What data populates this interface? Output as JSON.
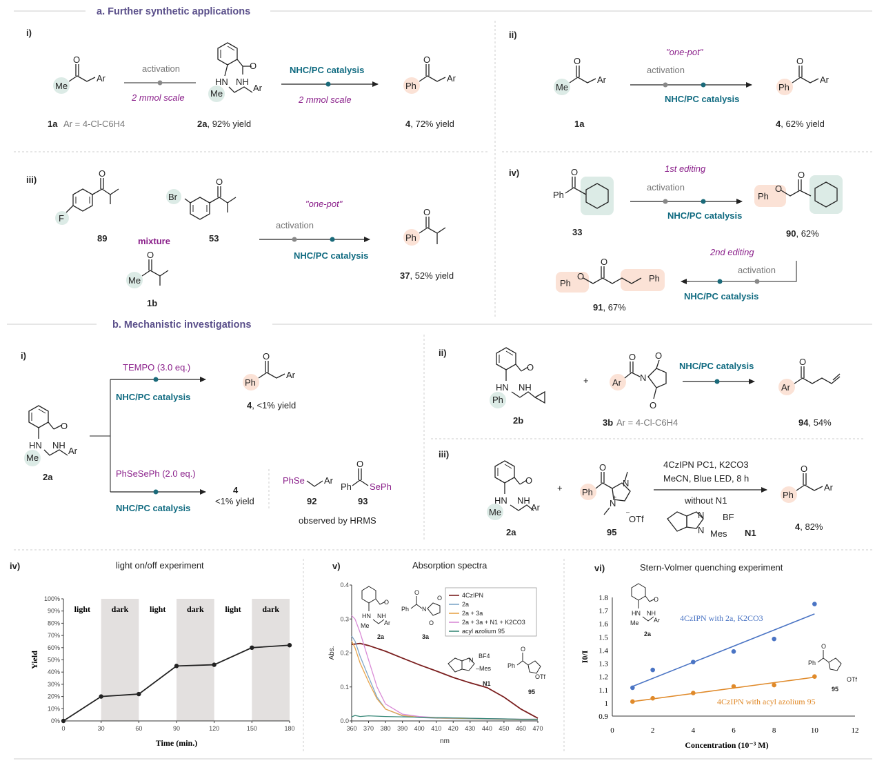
{
  "headings": {
    "a": "a. Further synthetic applications",
    "b": "b. Mechanistic investigations"
  },
  "panel_a": {
    "i": {
      "numeral": "i)",
      "cond1_top": "activation",
      "cond1_bottom": "2 mmol scale",
      "cond2_top": "NHC/PC catalysis",
      "cond2_bottom": "2 mmol scale",
      "sm_id": "1a",
      "sm_note": "Ar = 4-Cl-C6H4",
      "int_id": "2a",
      "int_yield": ", 92% yield",
      "prod_id": "4",
      "prod_yield": ", 72% yield"
    },
    "ii": {
      "numeral": "ii)",
      "onepot": "\"one-pot\"",
      "cond_top": "activation",
      "cond_bottom": "NHC/PC catalysis",
      "sm_id": "1a",
      "prod_id": "4",
      "prod_yield": ", 62% yield"
    },
    "iii": {
      "numeral": "iii)",
      "id_f": "89",
      "mixture": "mixture",
      "id_br": "53",
      "id_me": "1b",
      "onepot": "\"one-pot\"",
      "cond_top": "activation",
      "cond_bottom": "NHC/PC catalysis",
      "prod_id": "37",
      "prod_yield": ", 52% yield"
    },
    "iv": {
      "numeral": "iv)",
      "edit1": "1st editing",
      "edit2": "2nd editing",
      "cond_top": "activation",
      "cond_bottom": "NHC/PC catalysis",
      "cond2_top": "activation",
      "cond2_bottom": "NHC/PC catalysis",
      "sm_id": "33",
      "int_id": "90",
      "int_yield": ", 62%",
      "prod_id": "91",
      "prod_yield": ", 67%"
    }
  },
  "panel_b": {
    "i": {
      "numeral": "i)",
      "tempo": "TEMPO (3.0 eq.)",
      "cat1": "NHC/PC catalysis",
      "prod_id": "4",
      "prod_yield": ", <1% yield",
      "phse": "PhSeSePh (2.0 eq.)",
      "cat2": "NHC/PC catalysis",
      "prod2_id": "4",
      "prod2_yield": "<1% yield",
      "id92": "92",
      "id93": "93",
      "hrms": "observed by HRMS",
      "sm_id": "2a"
    },
    "ii": {
      "numeral": "ii)",
      "cat": "NHC/PC catalysis",
      "plus": "+",
      "id_2b": "2b",
      "id_3b": "3b",
      "note_3b": "Ar = 4-Cl-C6H4",
      "prod_id": "94",
      "prod_yield": ", 54%"
    },
    "iii": {
      "numeral": "iii)",
      "cond1": "4CzIPN PC1, K2CO3",
      "cond2": "MeCN, Blue LED, 8 h",
      "without": "without N1",
      "plus": "+",
      "id_2a": "2a",
      "id_95": "95",
      "n1": "N1",
      "prod_id": "4",
      "prod_yield": ", 82%"
    }
  },
  "plots": {
    "iv": {
      "numeral": "iv)",
      "title": "light on/off experiment",
      "phase_labels": [
        "light",
        "dark",
        "light",
        "dark",
        "light",
        "dark"
      ]
    },
    "v": {
      "numeral": "v)",
      "title": "Absorption spectra"
    },
    "vi": {
      "numeral": "vi)",
      "title": "Stern-Volmer quenching experiment"
    }
  },
  "chart_data": [
    {
      "type": "line",
      "title": "light on/off experiment",
      "xlabel": "Time (min.)",
      "ylabel": "Yield",
      "x": [
        0,
        30,
        60,
        90,
        120,
        150,
        180
      ],
      "series": [
        {
          "name": "Yield",
          "values": [
            0,
            20,
            22,
            45,
            46,
            60,
            62
          ]
        }
      ],
      "xticks": [
        "0",
        "30",
        "60",
        "90",
        "120",
        "150",
        "180"
      ],
      "yticks": [
        "0%",
        "10%",
        "20%",
        "30%",
        "40%",
        "50%",
        "60%",
        "70%",
        "80%",
        "90%",
        "100%"
      ],
      "xlim": [
        0,
        180
      ],
      "ylim": [
        0,
        100
      ],
      "dark_intervals": [
        [
          30,
          60
        ],
        [
          90,
          120
        ],
        [
          150,
          180
        ]
      ]
    },
    {
      "type": "line",
      "title": "Absorption spectra",
      "xlabel": "nm",
      "ylabel": "Abs.",
      "xlim": [
        360,
        470
      ],
      "ylim": [
        0,
        0.4
      ],
      "xticks": [
        "360",
        "370",
        "380",
        "390",
        "400",
        "410",
        "420",
        "430",
        "440",
        "450",
        "460",
        "470"
      ],
      "yticks": [
        "0.0",
        "0.1",
        "0.2",
        "0.3",
        "0.4"
      ],
      "series": [
        {
          "name": "4CzIPN",
          "color": "#7a1e1e",
          "x": [
            360,
            365,
            370,
            380,
            390,
            400,
            410,
            420,
            430,
            440,
            450,
            460,
            470
          ],
          "values": [
            0.225,
            0.228,
            0.222,
            0.205,
            0.185,
            0.165,
            0.147,
            0.128,
            0.112,
            0.098,
            0.07,
            0.035,
            0.008
          ]
        },
        {
          "name": "2a",
          "color": "#7fa6c8",
          "x": [
            360,
            362,
            365,
            370,
            375,
            380,
            390,
            400,
            410,
            420,
            430,
            440,
            450,
            460,
            470
          ],
          "values": [
            0.25,
            0.235,
            0.19,
            0.13,
            0.07,
            0.035,
            0.015,
            0.01,
            0.008,
            0.007,
            0.006,
            0.005,
            0.004,
            0.003,
            0.003
          ]
        },
        {
          "name": "2a + 3a",
          "color": "#e8a44a",
          "x": [
            360,
            362,
            365,
            370,
            375,
            380,
            390,
            400,
            410,
            420,
            430,
            440,
            450,
            460,
            470
          ],
          "values": [
            0.235,
            0.215,
            0.17,
            0.115,
            0.065,
            0.035,
            0.016,
            0.011,
            0.009,
            0.008,
            0.007,
            0.006,
            0.005,
            0.004,
            0.004
          ]
        },
        {
          "name": "2a + 3a + N1 + K2CO3",
          "color": "#d98ad6",
          "x": [
            360,
            362,
            365,
            370,
            375,
            380,
            390,
            400,
            410,
            420,
            430,
            440,
            450,
            460,
            470
          ],
          "values": [
            0.31,
            0.3,
            0.26,
            0.18,
            0.1,
            0.05,
            0.02,
            0.013,
            0.01,
            0.009,
            0.008,
            0.007,
            0.006,
            0.005,
            0.005
          ]
        },
        {
          "name": "acyl azolium 95",
          "color": "#3a8a7a",
          "x": [
            360,
            362,
            365,
            370,
            375,
            380,
            390,
            400,
            410,
            420,
            430,
            440,
            450,
            460,
            470
          ],
          "values": [
            0.012,
            0.016,
            0.013,
            0.015,
            0.014,
            0.013,
            0.012,
            0.011,
            0.01,
            0.009,
            0.008,
            0.007,
            0.006,
            0.005,
            0.005
          ]
        }
      ]
    },
    {
      "type": "scatter",
      "title": "Stern-Volmer quenching experiment",
      "xlabel": "Concentration (10⁻³ M)",
      "ylabel": "I0/I",
      "xlim": [
        0,
        12
      ],
      "ylim": [
        0.9,
        1.8
      ],
      "xticks": [
        "0",
        "2",
        "4",
        "6",
        "8",
        "10",
        "12"
      ],
      "yticks": [
        "0.9",
        "1",
        "1.1",
        "1.2",
        "1.3",
        "1.4",
        "1.5",
        "1.6",
        "1.7",
        "1.8"
      ],
      "series": [
        {
          "name": "4CzIPN with 2a, K2CO3",
          "color": "#4a74c4",
          "x": [
            1,
            2,
            4,
            6,
            8,
            10
          ],
          "values": [
            1.115,
            1.25,
            1.31,
            1.39,
            1.485,
            1.75
          ],
          "fit": [
            [
              1,
              1.125
            ],
            [
              10,
              1.675
            ]
          ]
        },
        {
          "name": "4CzIPN with acyl azolium 95",
          "color": "#e08a2a",
          "x": [
            1,
            2,
            4,
            6,
            8,
            10
          ],
          "values": [
            1.01,
            1.035,
            1.075,
            1.125,
            1.135,
            1.2
          ],
          "fit": [
            [
              1,
              1.01
            ],
            [
              10,
              1.195
            ]
          ]
        }
      ]
    }
  ]
}
